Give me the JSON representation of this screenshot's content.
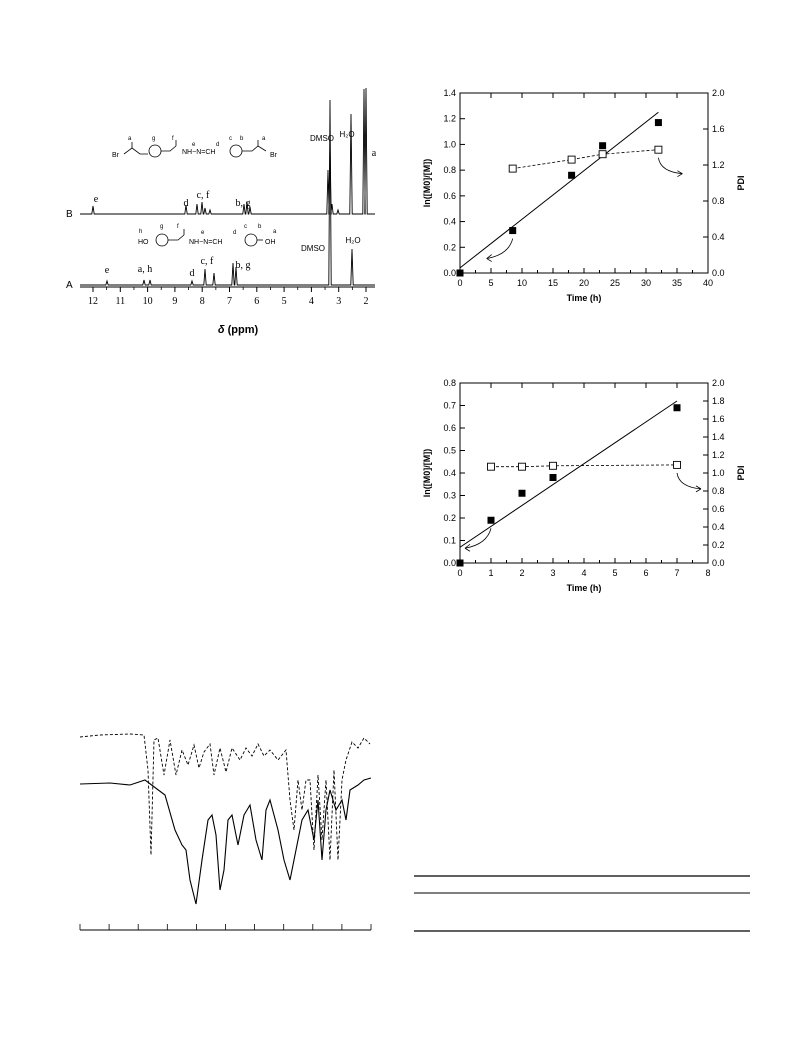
{
  "nmr": {
    "xaxis_label_symbol": "δ",
    "xaxis_label_unit": " (ppm)",
    "xticks": [
      "12",
      "11",
      "10",
      "9",
      "8",
      "7",
      "6",
      "5",
      "4",
      "3",
      "2"
    ],
    "trace_B_label": "B",
    "trace_A_label": "A",
    "B_peaks": [
      {
        "label": "e"
      },
      {
        "label": "d"
      },
      {
        "label": "c, f"
      },
      {
        "label": "b, g"
      },
      {
        "label": "DMSO"
      },
      {
        "label": "H₂O"
      },
      {
        "label": "a"
      }
    ],
    "A_peaks": [
      {
        "label": "e"
      },
      {
        "label": "a, h"
      },
      {
        "label": "d"
      },
      {
        "label": "c, f"
      },
      {
        "label": "b, g"
      },
      {
        "label": "DMSO"
      },
      {
        "label": "H₂O"
      }
    ],
    "B_structure": {
      "left_end": "Br",
      "right_end": "Br",
      "linker": "NH−N=CH",
      "letters": [
        "a",
        "g",
        "f",
        "e",
        "d",
        "c",
        "b",
        "a"
      ]
    },
    "A_structure": {
      "left_end": "HO",
      "right_end": "OH",
      "linker": "NH−N=CH",
      "letters": [
        "h",
        "g",
        "f",
        "e",
        "d",
        "c",
        "b",
        "a"
      ]
    }
  },
  "chart_data": [
    {
      "type": "scatter",
      "xlabel": "Time (h)",
      "ylabel": "ln([M0]/[M])",
      "y2label": "PDI",
      "xlim": [
        0,
        40
      ],
      "ylim": [
        0,
        1.4
      ],
      "y2lim": [
        0,
        2.0
      ],
      "xticks": [
        "0",
        "5",
        "10",
        "15",
        "20",
        "25",
        "30",
        "35",
        "40"
      ],
      "yticks": [
        "0.0",
        "0.2",
        "0.4",
        "0.6",
        "0.8",
        "1.0",
        "1.2",
        "1.4"
      ],
      "y2ticks": [
        "0.0",
        "0.4",
        "0.8",
        "1.2",
        "1.6",
        "2.0"
      ],
      "series": [
        {
          "marker": "filled-square",
          "axis": "left",
          "x": [
            0,
            8.5,
            18,
            23,
            32
          ],
          "y": [
            0.0,
            0.33,
            0.76,
            0.99,
            1.17
          ]
        },
        {
          "marker": "open-square",
          "axis": "right",
          "line": "dashed",
          "x": [
            8.5,
            18,
            23,
            32
          ],
          "y": [
            1.16,
            1.26,
            1.32,
            1.37
          ]
        }
      ],
      "fit_line": {
        "x": [
          0,
          32
        ],
        "y": [
          0.04,
          1.25
        ]
      }
    },
    {
      "type": "scatter",
      "xlabel": "Time (h)",
      "ylabel": "ln([M0]/[M])",
      "y2label": "PDI",
      "xlim": [
        0,
        8
      ],
      "ylim": [
        0,
        0.8
      ],
      "y2lim": [
        0,
        2.0
      ],
      "xticks": [
        "0",
        "1",
        "2",
        "3",
        "4",
        "5",
        "6",
        "7",
        "8"
      ],
      "yticks": [
        "0.0",
        "0.1",
        "0.2",
        "0.3",
        "0.4",
        "0.5",
        "0.6",
        "0.7",
        "0.8"
      ],
      "y2ticks": [
        "0.0",
        "0.2",
        "0.4",
        "0.6",
        "0.8",
        "1.0",
        "1.2",
        "1.4",
        "1.6",
        "1.8",
        "2.0"
      ],
      "series": [
        {
          "marker": "filled-square",
          "axis": "left",
          "x": [
            0,
            1,
            2,
            3,
            7
          ],
          "y": [
            0.0,
            0.19,
            0.31,
            0.38,
            0.69
          ]
        },
        {
          "marker": "open-square",
          "axis": "right",
          "line": "dashed",
          "x": [
            1,
            2,
            3,
            7
          ],
          "y": [
            1.07,
            1.07,
            1.08,
            1.09
          ]
        }
      ],
      "fit_line": {
        "x": [
          0,
          7
        ],
        "y": [
          0.07,
          0.72
        ]
      }
    }
  ],
  "colors": {
    "ink": "#000000",
    "background": "#ffffff"
  }
}
